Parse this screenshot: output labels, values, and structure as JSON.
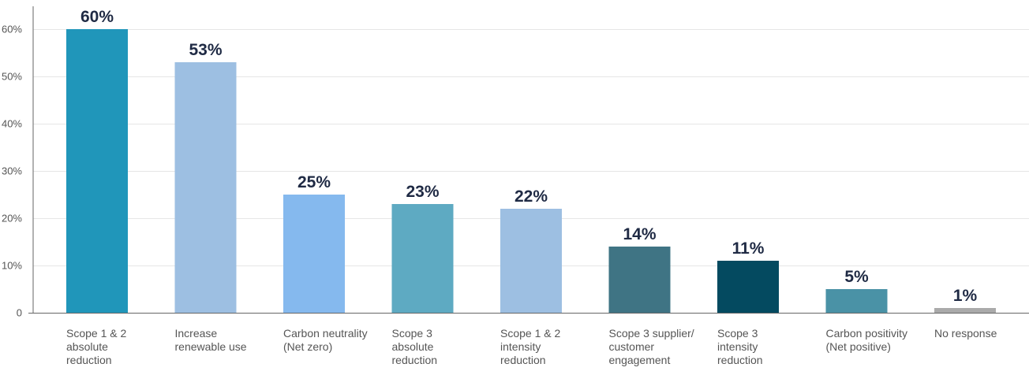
{
  "chart_data": {
    "type": "bar",
    "categories": [
      [
        "Scope 1 & 2",
        "absolute",
        "reduction"
      ],
      [
        "Increase",
        "renewable use"
      ],
      [
        "Carbon neutrality",
        "(Net zero)"
      ],
      [
        "Scope 3",
        "absolute",
        "reduction"
      ],
      [
        "Scope 1 & 2",
        "intensity",
        "reduction"
      ],
      [
        "Scope 3 supplier/",
        "customer",
        "engagement"
      ],
      [
        "Scope 3",
        "intensity",
        "reduction"
      ],
      [
        "Carbon positivity",
        "(Net positive)"
      ],
      [
        "No response"
      ]
    ],
    "values": [
      60,
      53,
      25,
      23,
      22,
      14,
      11,
      5,
      1
    ],
    "value_labels": [
      "60%",
      "53%",
      "25%",
      "23%",
      "22%",
      "14%",
      "11%",
      "5%",
      "1%"
    ],
    "colors": [
      "#2096ba",
      "#9dbfe2",
      "#85b9ee",
      "#5eaac2",
      "#9dbfe2",
      "#3f7484",
      "#044a60",
      "#4a92a6",
      "#aaaaaa"
    ],
    "yticks": [
      0,
      10,
      20,
      30,
      40,
      50,
      60
    ],
    "ytick_labels": [
      "0",
      "10%",
      "20%",
      "30%",
      "40%",
      "50%",
      "60%"
    ],
    "ylim": [
      0,
      60
    ],
    "grid": true,
    "title": "",
    "xlabel": "",
    "ylabel": ""
  }
}
